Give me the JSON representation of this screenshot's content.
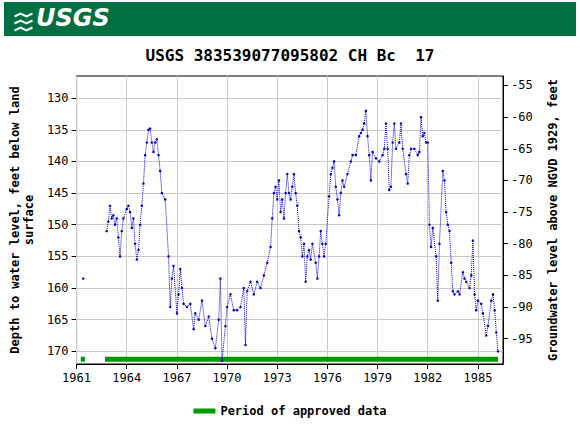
{
  "chart_data": {
    "type": "line",
    "header": "USGS",
    "title": "USGS 383539077095802 CH Bc  17",
    "y_label": "Depth to water level, feet below land\nsurface",
    "y2_label": "Groundwater level above NGVD 1929, feet",
    "xlim": [
      1961,
      1986.5
    ],
    "xticks": [
      1961,
      1964,
      1967,
      1970,
      1973,
      1976,
      1979,
      1982,
      1985
    ],
    "ylim": [
      172,
      126.5
    ],
    "yticks": [
      130,
      135,
      140,
      145,
      150,
      155,
      160,
      165,
      170
    ],
    "y2lim": [
      -99,
      -53.5
    ],
    "y2ticks": [
      -55,
      -60,
      -65,
      -70,
      -75,
      -80,
      -85,
      -90,
      -95
    ],
    "grid": true,
    "legend": "bottom",
    "series": [
      {
        "color": "#0000cc",
        "line_style": "dotted",
        "marker": "circle",
        "x": [
          1961.4,
          1961.4,
          1962.8,
          1962.9,
          1963.0,
          1963.1,
          1963.2,
          1963.3,
          1963.4,
          1963.5,
          1963.6,
          1963.7,
          1963.8,
          1964.0,
          1964.1,
          1964.2,
          1964.3,
          1964.4,
          1964.5,
          1964.6,
          1964.7,
          1964.8,
          1964.9,
          1965.0,
          1965.1,
          1965.2,
          1965.3,
          1965.4,
          1965.5,
          1965.6,
          1965.7,
          1965.8,
          1965.9,
          1966.0,
          1966.1,
          1966.3,
          1966.5,
          1966.6,
          1966.7,
          1966.8,
          1967.0,
          1967.1,
          1967.2,
          1967.3,
          1967.4,
          1967.6,
          1967.8,
          1968.0,
          1968.1,
          1968.3,
          1968.5,
          1968.7,
          1968.9,
          1969.1,
          1969.3,
          1969.5,
          1969.6,
          1969.7,
          1969.9,
          1970.0,
          1970.2,
          1970.4,
          1970.6,
          1970.8,
          1971.0,
          1971.1,
          1971.2,
          1971.4,
          1971.6,
          1971.8,
          1972.0,
          1972.2,
          1972.4,
          1972.6,
          1972.7,
          1972.8,
          1972.9,
          1973.0,
          1973.1,
          1973.2,
          1973.3,
          1973.4,
          1973.5,
          1973.6,
          1973.7,
          1973.8,
          1973.9,
          1974.0,
          1974.1,
          1974.2,
          1974.3,
          1974.4,
          1974.5,
          1974.6,
          1974.7,
          1974.8,
          1974.9,
          1975.0,
          1975.1,
          1975.3,
          1975.4,
          1975.5,
          1975.6,
          1975.7,
          1975.8,
          1975.9,
          1976.1,
          1976.2,
          1976.3,
          1976.4,
          1976.5,
          1976.6,
          1976.7,
          1976.8,
          1976.9,
          1977.0,
          1977.2,
          1977.4,
          1977.5,
          1977.7,
          1977.9,
          1978.0,
          1978.1,
          1978.2,
          1978.3,
          1978.4,
          1978.5,
          1978.6,
          1978.7,
          1978.9,
          1979.1,
          1979.3,
          1979.4,
          1979.5,
          1979.6,
          1979.7,
          1979.8,
          1979.9,
          1980.0,
          1980.1,
          1980.3,
          1980.4,
          1980.5,
          1980.7,
          1980.8,
          1980.9,
          1981.0,
          1981.2,
          1981.4,
          1981.5,
          1981.6,
          1981.7,
          1981.8,
          1981.9,
          1982.0,
          1982.1,
          1982.2,
          1982.3,
          1982.5,
          1982.6,
          1982.7,
          1982.9,
          1983.0,
          1983.1,
          1983.2,
          1983.3,
          1983.4,
          1983.5,
          1983.6,
          1983.8,
          1983.9,
          1984.1,
          1984.2,
          1984.3,
          1984.5,
          1984.6,
          1984.7,
          1984.8,
          1984.9,
          1985.0,
          1985.2,
          1985.3,
          1985.5,
          1985.6,
          1985.8,
          1985.9,
          1986.0,
          1986.1,
          1986.2
        ],
        "values": [
          158.5,
          null,
          151,
          149.5,
          147,
          149,
          148.5,
          150,
          149,
          152,
          155,
          151,
          149,
          147.5,
          147,
          148,
          150.5,
          149,
          153,
          155.5,
          154,
          150,
          147,
          143.5,
          139,
          137,
          135,
          134.8,
          137,
          138.5,
          137,
          136.5,
          139,
          141.5,
          145,
          146,
          155,
          163,
          158.5,
          156.5,
          164,
          161,
          157,
          160,
          162.5,
          163,
          162.5,
          166.5,
          164,
          165,
          162,
          166,
          164.5,
          168,
          169.5,
          165,
          158.5,
          171.5,
          166,
          163,
          161,
          163.5,
          163.5,
          163,
          160,
          169,
          160.5,
          159,
          161,
          159,
          160,
          158,
          156,
          153.5,
          149,
          145,
          144,
          146,
          143,
          148,
          146,
          149,
          145,
          142,
          145,
          146,
          144,
          142,
          145,
          147,
          151,
          152,
          155,
          153,
          159,
          155,
          154,
          155.5,
          153,
          156,
          158.5,
          155,
          151,
          153,
          155,
          153,
          145.5,
          142,
          141,
          140,
          144,
          146,
          148.5,
          145,
          143,
          144,
          142,
          140,
          139,
          139,
          136,
          135.5,
          135,
          134,
          132,
          136,
          139,
          143,
          138.5,
          139.5,
          140,
          139,
          138,
          134,
          138,
          144.5,
          144,
          137,
          134,
          138,
          137,
          134,
          138,
          142,
          143.5,
          139,
          138,
          138,
          139,
          138.5,
          133,
          136,
          135.5,
          137,
          137,
          150,
          153.5,
          150.5,
          155,
          162,
          153,
          141.5,
          143,
          148,
          150,
          151,
          156,
          160.5,
          161,
          160.5,
          161,
          157.5,
          158.5,
          159,
          160,
          158,
          152.5,
          161,
          163.5,
          162,
          162.5,
          164,
          167.5,
          166,
          162,
          161,
          163.5,
          167,
          170
        ]
      },
      {
        "name": "Period of approved data",
        "color": "#009900",
        "line_style": "solid",
        "marker": "none",
        "x": [
          1961.25,
          1961.5,
          1961.5,
          1962.7,
          1986.2
        ],
        "values": [
          171.25,
          171.25,
          null,
          171.25,
          171.25
        ]
      }
    ]
  }
}
